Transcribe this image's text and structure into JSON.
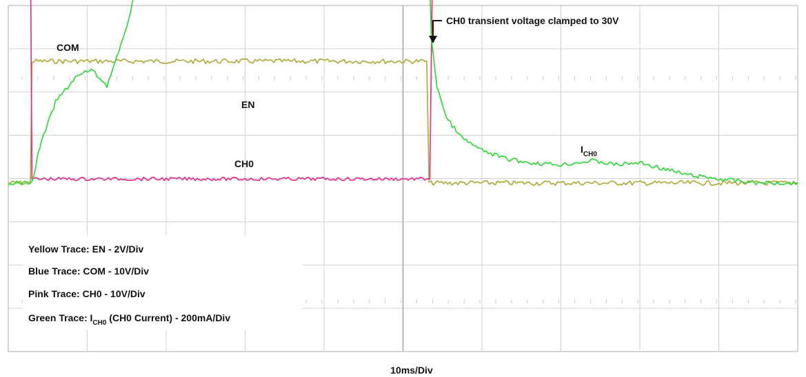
{
  "chart_data": {
    "type": "line",
    "x_scale_label": "10ms/Div",
    "x_divisions": 10,
    "y_divisions": 8,
    "xlim": [
      0,
      100
    ],
    "annotation": "CH0 transient voltage clamped to 30V",
    "trace_labels": {
      "com": "COM",
      "en": "EN",
      "ch0": "CH0",
      "ich0_main": "I",
      "ich0_sub": "CH0"
    },
    "legend": [
      {
        "key": "yellow",
        "text": "Yellow Trace: EN - 2V/Div"
      },
      {
        "key": "blue",
        "text": "Blue Trace: COM - 10V/Div"
      },
      {
        "key": "pink",
        "text": "Pink Trace: CH0 - 10V/Div"
      },
      {
        "key": "green",
        "prefix": "Green Trace: I",
        "sub": "CH0",
        "suffix": " (CH0 Current) - 200mA/Div"
      }
    ],
    "series": [
      {
        "name": "COM",
        "color": "#2a2ae0",
        "scale": "10V/Div",
        "x": [
          0,
          100
        ],
        "y": [
          6.0,
          6.0
        ]
      },
      {
        "name": "EN",
        "color": "#b0aa3a",
        "scale": "2V/Div",
        "x": [
          0,
          2.8,
          3.0,
          53.0,
          53.3,
          100
        ],
        "y": [
          0.0,
          0.0,
          3.0,
          3.0,
          0.0,
          0.0
        ]
      },
      {
        "name": "CH0",
        "color": "#e8308a",
        "scale": "10V/Div",
        "x": [
          0,
          2.8,
          3.0,
          53.0,
          53.4,
          53.8,
          100
        ],
        "y": [
          6.0,
          6.0,
          0.1,
          0.1,
          0.1,
          6.3,
          6.3
        ]
      },
      {
        "name": "I(CH0)",
        "color": "#2fd838",
        "scale": "200mA/Div",
        "x": [
          0,
          3.0,
          4.0,
          6.0,
          8.5,
          10.5,
          12.5,
          14.5,
          16.5,
          18.5,
          53.0,
          53.3,
          53.6,
          54.3,
          55.5,
          57.5,
          60,
          63,
          66,
          70,
          74,
          77,
          80,
          83,
          86,
          90,
          95,
          100
        ],
        "y": [
          0.0,
          0.0,
          0.9,
          2.0,
          2.6,
          2.8,
          2.4,
          3.5,
          5.0,
          6.0,
          6.0,
          5.5,
          3.5,
          2.4,
          1.6,
          1.1,
          0.8,
          0.6,
          0.5,
          0.45,
          0.55,
          0.45,
          0.5,
          0.35,
          0.2,
          0.1,
          0.0,
          0.0
        ]
      }
    ]
  }
}
